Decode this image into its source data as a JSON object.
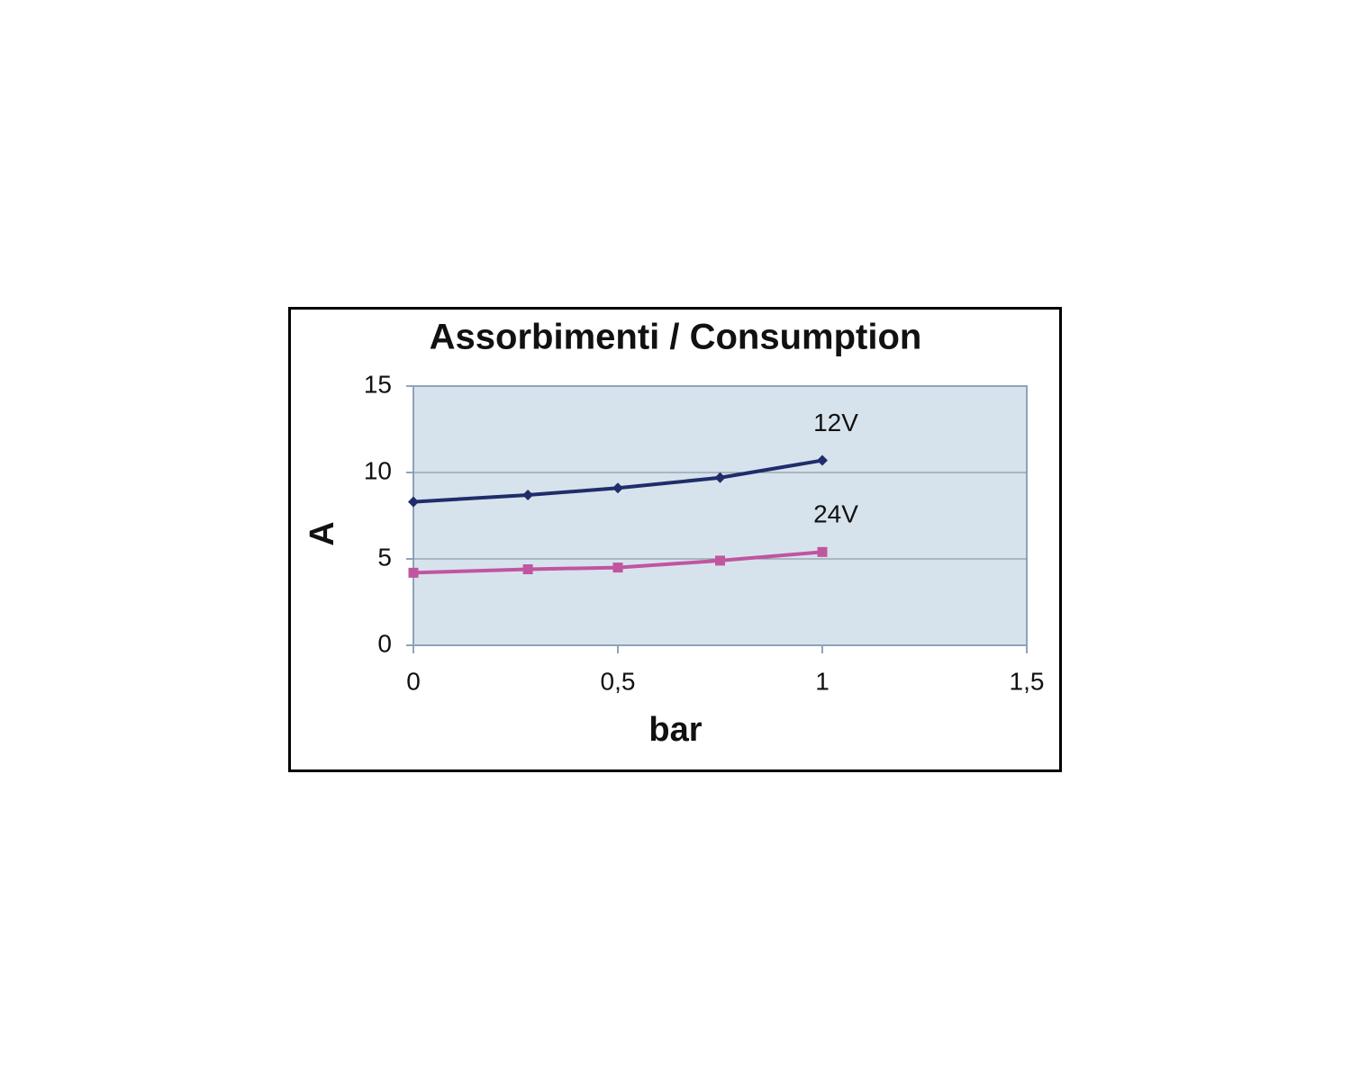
{
  "chart_data": {
    "type": "line",
    "title": "Assorbimenti / Consumption",
    "x_label": "bar",
    "y_label": "A",
    "x": [
      0,
      0.28,
      0.5,
      0.75,
      1
    ],
    "series": [
      {
        "name": "12V",
        "color": "#1f2d6b",
        "marker": "diamond",
        "values": [
          8.3,
          8.7,
          9.1,
          9.7,
          10.7
        ]
      },
      {
        "name": "24V",
        "color": "#c055a0",
        "marker": "square",
        "values": [
          4.2,
          4.4,
          4.5,
          4.9,
          5.4
        ]
      }
    ],
    "xlim": [
      0,
      1.5
    ],
    "xticks": [
      0,
      {
        "value": 0.5,
        "label": "0,5"
      },
      1,
      {
        "value": 1.5,
        "label": "1,5"
      }
    ],
    "ylim": [
      0,
      15
    ],
    "yticks": [
      0,
      5,
      10,
      15
    ],
    "grid": true
  }
}
